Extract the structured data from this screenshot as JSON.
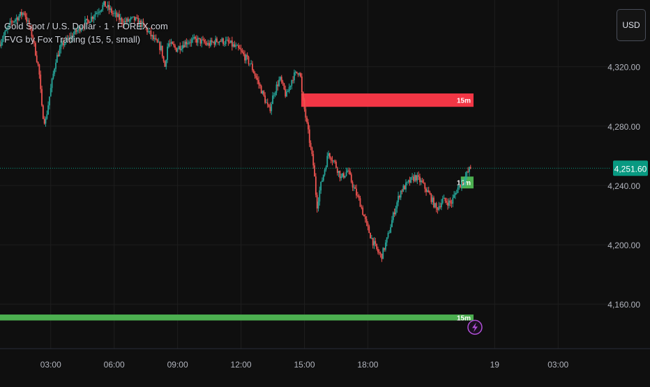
{
  "legend": {
    "symbol": "Gold Spot / U.S. Dollar · 1 · FOREX.com",
    "indicator": "FVG by Fox Trading (15, 5, small)"
  },
  "currency_button": {
    "label": "USD"
  },
  "colors": {
    "background": "#0f0f0f",
    "grid": "#1e1e1e",
    "up_candle": "#26a69a",
    "down_candle": "#ef5350",
    "bearish_fvg": "#f23645",
    "bullish_fvg": "#4caf50",
    "price_tag": "#089981",
    "alert_icon": "#b14fd8"
  },
  "chart_data": {
    "type": "candlestick",
    "title": "Gold Spot / U.S. Dollar · 1 · FOREX.com",
    "y_axis": {
      "ticks": [
        4320,
        4280,
        4240,
        4200,
        4160
      ],
      "tick_labels": [
        "4,320.00",
        "4,280.00",
        "4,240.00",
        "4,200.00",
        "4,160.00"
      ],
      "range": [
        4130,
        4365
      ]
    },
    "x_axis": {
      "ticks": [
        "03:00",
        "06:00",
        "09:00",
        "12:00",
        "15:00",
        "18:00",
        "19",
        "03:00"
      ],
      "tick_hours": [
        3,
        6,
        9,
        12,
        15,
        18,
        24,
        27
      ],
      "range_hours": [
        0.6,
        29.5
      ]
    },
    "grid": true,
    "last_price": {
      "value": 4251.6,
      "label": "4,251.60"
    },
    "price_path": [
      [
        0.6,
        4335
      ],
      [
        1.2,
        4350
      ],
      [
        1.8,
        4357
      ],
      [
        2.2,
        4340
      ],
      [
        2.5,
        4318
      ],
      [
        2.65,
        4290
      ],
      [
        2.8,
        4282
      ],
      [
        3.0,
        4300
      ],
      [
        3.3,
        4325
      ],
      [
        3.6,
        4335
      ],
      [
        4.0,
        4340
      ],
      [
        4.4,
        4346
      ],
      [
        4.9,
        4352
      ],
      [
        5.3,
        4358
      ],
      [
        5.6,
        4362
      ],
      [
        6.0,
        4356
      ],
      [
        6.5,
        4350
      ],
      [
        7.0,
        4352
      ],
      [
        7.5,
        4347
      ],
      [
        8.0,
        4337
      ],
      [
        8.3,
        4332
      ],
      [
        8.45,
        4319
      ],
      [
        8.6,
        4336
      ],
      [
        9.0,
        4332
      ],
      [
        9.5,
        4337
      ],
      [
        10.0,
        4338
      ],
      [
        10.5,
        4335
      ],
      [
        11.0,
        4338
      ],
      [
        11.5,
        4336
      ],
      [
        12.0,
        4331
      ],
      [
        12.5,
        4322
      ],
      [
        13.0,
        4305
      ],
      [
        13.4,
        4290
      ],
      [
        13.6,
        4302
      ],
      [
        13.9,
        4312
      ],
      [
        14.2,
        4300
      ],
      [
        14.5,
        4313
      ],
      [
        14.85,
        4318
      ],
      [
        14.95,
        4300
      ],
      [
        15.1,
        4288
      ],
      [
        15.3,
        4270
      ],
      [
        15.5,
        4252
      ],
      [
        15.65,
        4226
      ],
      [
        15.8,
        4238
      ],
      [
        16.0,
        4250
      ],
      [
        16.2,
        4262
      ],
      [
        16.5,
        4255
      ],
      [
        16.8,
        4245
      ],
      [
        17.1,
        4250
      ],
      [
        17.4,
        4238
      ],
      [
        17.7,
        4228
      ],
      [
        18.0,
        4213
      ],
      [
        18.3,
        4202
      ],
      [
        18.5,
        4196
      ],
      [
        18.7,
        4192
      ],
      [
        19.0,
        4205
      ],
      [
        19.3,
        4222
      ],
      [
        19.6,
        4236
      ],
      [
        20.0,
        4242
      ],
      [
        20.3,
        4246
      ],
      [
        20.6,
        4242
      ],
      [
        21.0,
        4233
      ],
      [
        21.3,
        4224
      ],
      [
        21.6,
        4230
      ],
      [
        22.0,
        4228
      ],
      [
        22.3,
        4238
      ],
      [
        22.6,
        4244
      ],
      [
        22.9,
        4251.6
      ]
    ],
    "fvg_zones": [
      {
        "kind": "bearish",
        "label": "15m",
        "x_start": 14.85,
        "x_end": 23.0,
        "y_low": 4293,
        "y_high": 4302
      },
      {
        "kind": "bullish",
        "label": "15m",
        "x_start": 22.4,
        "x_end": 23.0,
        "y_low": 4238,
        "y_high": 4246
      },
      {
        "kind": "bullish",
        "label": "15m",
        "x_start": 0.6,
        "x_end": 23.0,
        "y_low": 4149,
        "y_high": 4153
      }
    ]
  }
}
